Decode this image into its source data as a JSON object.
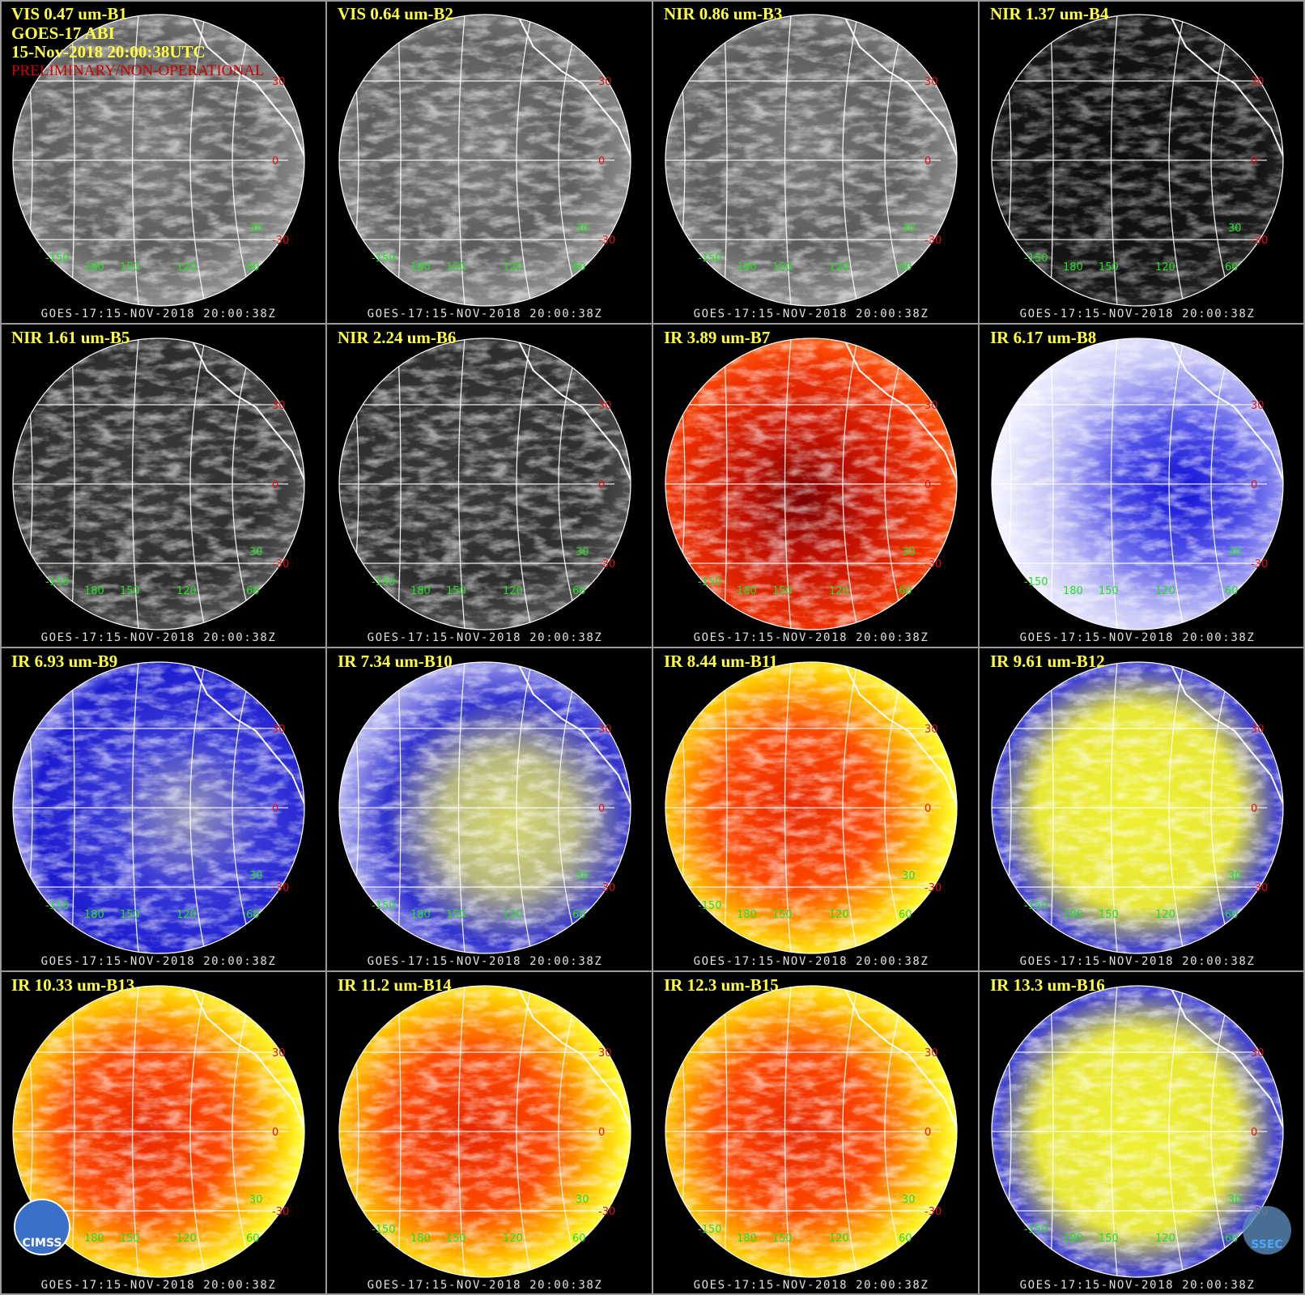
{
  "header": {
    "lines": [
      "GOES-17 ABI",
      "15-Nov-2018 20:00:38UTC"
    ],
    "notice": "PRELIMINARY/NON-OPERATIONAL"
  },
  "panels": [
    {
      "title": "VIS 0.47 um-B1",
      "footer": "GOES-17:15-NOV-2018 20:00:38Z",
      "palette": "vis"
    },
    {
      "title": "VIS 0.64 um-B2",
      "footer": "GOES-17:15-NOV-2018 20:00:38Z",
      "palette": "vis"
    },
    {
      "title": "NIR 0.86 um-B3",
      "footer": "GOES-17:15-NOV-2018 20:00:38Z",
      "palette": "vis"
    },
    {
      "title": "NIR 1.37 um-B4",
      "footer": "GOES-17:15-NOV-2018 20:00:38Z",
      "palette": "dark"
    },
    {
      "title": "NIR 1.61 um-B5",
      "footer": "GOES-17:15-NOV-2018 20:00:38Z",
      "palette": "nir"
    },
    {
      "title": "NIR 2.24 um-B6",
      "footer": "GOES-17:15-NOV-2018 20:00:38Z",
      "palette": "nir"
    },
    {
      "title": "IR 3.89 um-B7",
      "footer": "GOES-17:15-NOV-2018 20:00:38Z",
      "palette": "red"
    },
    {
      "title": "IR 6.17 um-B8",
      "footer": "GOES-17:15-NOV-2018 20:00:38Z",
      "palette": "wv"
    },
    {
      "title": "IR 6.93 um-B9",
      "footer": "GOES-17:15-NOV-2018 20:00:38Z",
      "palette": "blue"
    },
    {
      "title": "IR 7.34 um-B10",
      "footer": "GOES-17:15-NOV-2018 20:00:38Z",
      "palette": "blueyellow"
    },
    {
      "title": "IR 8.44 um-B11",
      "footer": "GOES-17:15-NOV-2018 20:00:38Z",
      "palette": "orange"
    },
    {
      "title": "IR 9.61 um-B12",
      "footer": "GOES-17:15-NOV-2018 20:00:38Z",
      "palette": "yellow"
    },
    {
      "title": "IR 10.33 um-B13",
      "footer": "GOES-17:15-NOV-2018 20:00:38Z",
      "palette": "orange"
    },
    {
      "title": "IR 11.2 um-B14",
      "footer": "GOES-17:15-NOV-2018 20:00:38Z",
      "palette": "orange"
    },
    {
      "title": "IR 12.3 um-B15",
      "footer": "GOES-17:15-NOV-2018 20:00:38Z",
      "palette": "orange"
    },
    {
      "title": "IR 13.3 um-B16",
      "footer": "GOES-17:15-NOV-2018 20:00:38Z",
      "palette": "yellow"
    }
  ],
  "grid_labels": {
    "lat": [
      "30",
      "0",
      "-30"
    ],
    "lon": [
      "-150",
      "180",
      "150",
      "120",
      "60"
    ],
    "extra": "30"
  },
  "logos": {
    "left": "CIMSS",
    "right": "SSEC"
  }
}
